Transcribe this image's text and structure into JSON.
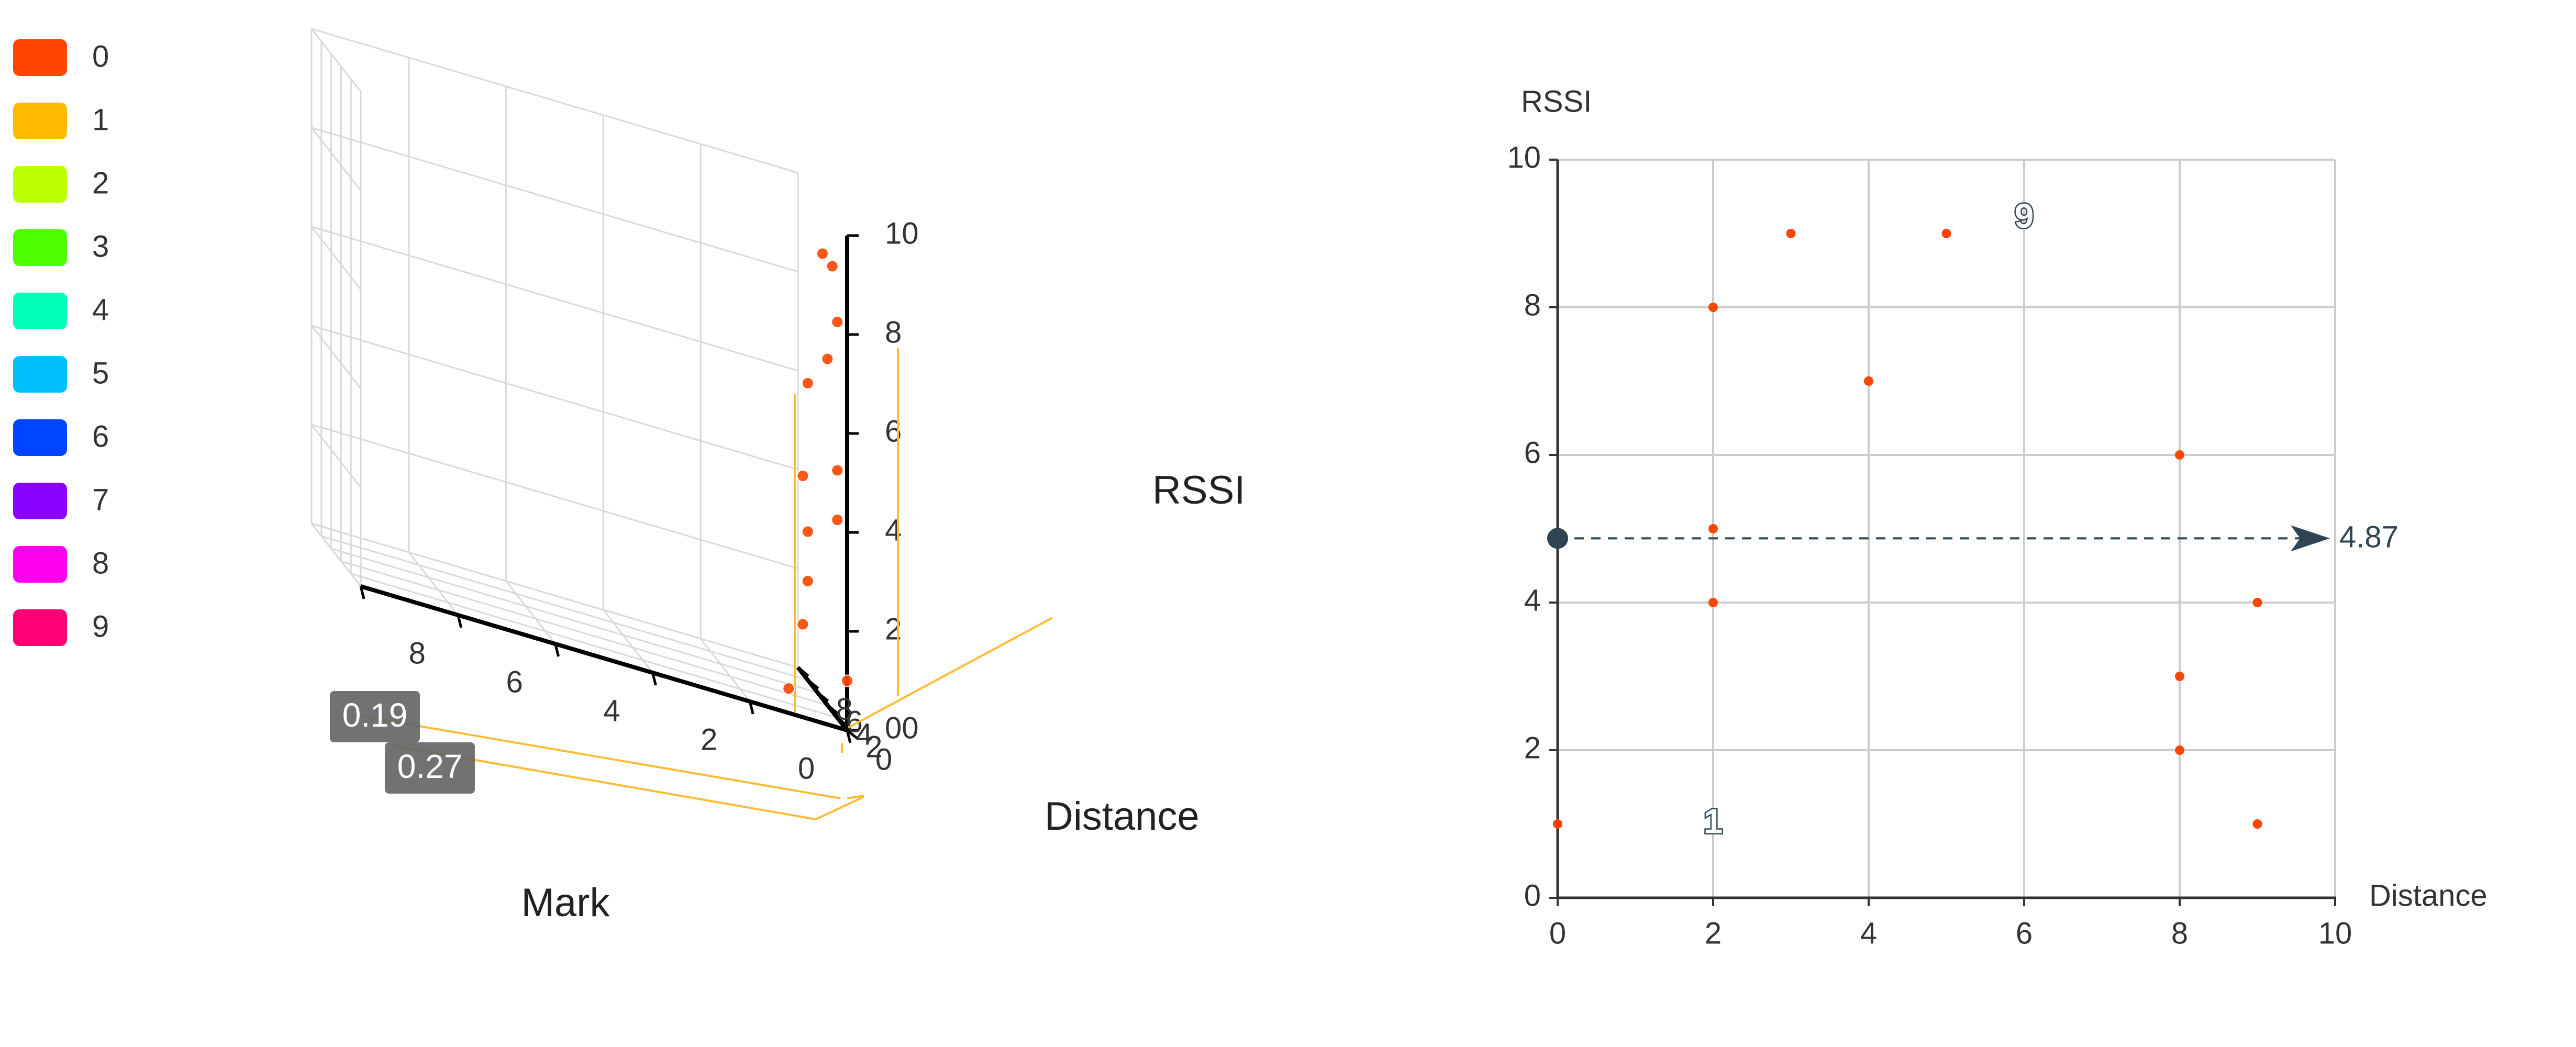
{
  "legend": {
    "items": [
      {
        "label": "0",
        "color": "#ff4500"
      },
      {
        "label": "1",
        "color": "#ffbb00"
      },
      {
        "label": "2",
        "color": "#bbff00"
      },
      {
        "label": "3",
        "color": "#4dff00"
      },
      {
        "label": "4",
        "color": "#00ffbb"
      },
      {
        "label": "5",
        "color": "#00bfff"
      },
      {
        "label": "6",
        "color": "#0044ff"
      },
      {
        "label": "7",
        "color": "#8800ff"
      },
      {
        "label": "8",
        "color": "#ff00ee"
      },
      {
        "label": "9",
        "color": "#ff0077"
      }
    ]
  },
  "chart_data": [
    {
      "type": "scatter",
      "subtype": "3d",
      "xlabel": "Distance",
      "ylabel": "Mark",
      "zlabel": "RSSI",
      "xlim": [
        0,
        10
      ],
      "ylim": [
        0,
        10
      ],
      "zlim": [
        0,
        10
      ],
      "x_ticks": [
        "0",
        "2",
        "4",
        "6",
        "8"
      ],
      "y_ticks": [
        "0",
        "2",
        "4",
        "6",
        "8"
      ],
      "z_ticks": [
        "00",
        "2",
        "4",
        "6",
        "8",
        "10"
      ],
      "grid": true,
      "point_color": "#ff4500",
      "axis_pointer": {
        "color": "#ffbb33",
        "label_values": [
          "0.19",
          "0.27"
        ]
      },
      "points": [
        {
          "x": 2,
          "y": 0,
          "z": 8
        },
        {
          "x": 2,
          "y": 0,
          "z": 5
        },
        {
          "x": 2,
          "y": 0,
          "z": 4
        },
        {
          "x": 3,
          "y": 0,
          "z": 9
        },
        {
          "x": 4,
          "y": 0,
          "z": 7
        },
        {
          "x": 5,
          "y": 0,
          "z": 9
        },
        {
          "x": 8,
          "y": 0,
          "z": 6
        },
        {
          "x": 8,
          "y": 0,
          "z": 3
        },
        {
          "x": 8,
          "y": 0,
          "z": 2
        },
        {
          "x": 9,
          "y": 0,
          "z": 4
        },
        {
          "x": 9,
          "y": 0,
          "z": 1
        },
        {
          "x": 0,
          "y": 0,
          "z": 1
        },
        {
          "x": 2,
          "y": 1,
          "z": 0.3
        }
      ]
    },
    {
      "type": "scatter",
      "xlabel": "Distance",
      "ylabel": "RSSI",
      "xlim": [
        0,
        10
      ],
      "ylim": [
        0,
        10
      ],
      "x_ticks": [
        "0",
        "2",
        "4",
        "6",
        "8",
        "10"
      ],
      "y_ticks": [
        "0",
        "2",
        "4",
        "6",
        "8",
        "10"
      ],
      "grid": true,
      "point_color": "#ff4500",
      "points": [
        {
          "x": 0,
          "y": 1
        },
        {
          "x": 2,
          "y": 8
        },
        {
          "x": 2,
          "y": 5
        },
        {
          "x": 2,
          "y": 4
        },
        {
          "x": 3,
          "y": 9
        },
        {
          "x": 4,
          "y": 7
        },
        {
          "x": 5,
          "y": 9
        },
        {
          "x": 8,
          "y": 6
        },
        {
          "x": 8,
          "y": 3
        },
        {
          "x": 8,
          "y": 2
        },
        {
          "x": 9,
          "y": 4
        },
        {
          "x": 9,
          "y": 1
        }
      ],
      "mark_points": [
        {
          "x": 2,
          "y": 1,
          "label": "1"
        },
        {
          "x": 6,
          "y": 9.2,
          "label": "9"
        }
      ],
      "reference_line": {
        "y": 4.87,
        "label": "4.87",
        "color": "#2f4554"
      }
    }
  ]
}
